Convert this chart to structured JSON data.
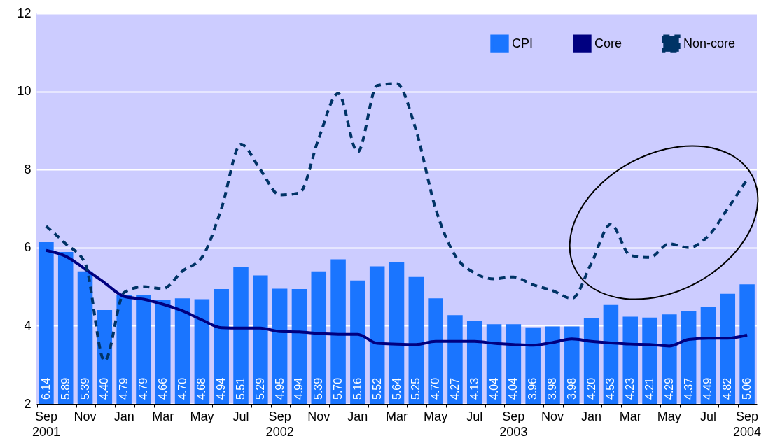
{
  "chart_data": {
    "type": "bar",
    "categories": [
      "Sep\n2001",
      null,
      "Nov",
      null,
      "Jan",
      null,
      "Mar",
      null,
      "May",
      null,
      "Jul",
      null,
      "Sep\n2002",
      null,
      "Nov",
      null,
      "Jan",
      null,
      "Mar",
      null,
      "May",
      null,
      "Jul",
      null,
      "Sep\n2003",
      null,
      "Nov",
      null,
      "Jan",
      null,
      "Mar",
      null,
      "May",
      null,
      "Jul",
      null,
      "Sep\n2004"
    ],
    "series": [
      {
        "name": "CPI",
        "color": "#1a75ff",
        "values": [
          6.14,
          5.89,
          5.39,
          4.4,
          4.79,
          4.79,
          4.66,
          4.7,
          4.68,
          4.94,
          5.51,
          5.29,
          4.95,
          4.94,
          5.39,
          5.7,
          5.16,
          5.52,
          5.64,
          5.25,
          4.7,
          4.27,
          4.13,
          4.04,
          4.04,
          3.96,
          3.98,
          3.98,
          4.2,
          4.53,
          4.23,
          4.21,
          4.29,
          4.37,
          4.49,
          4.82,
          5.06
        ]
      },
      {
        "name": "Core",
        "type": "line",
        "color": "#000080",
        "line_style": "solid",
        "values": [
          5.93,
          5.78,
          5.45,
          5.1,
          4.75,
          4.68,
          4.55,
          4.38,
          4.15,
          3.95,
          3.94,
          3.94,
          3.85,
          3.84,
          3.8,
          3.78,
          3.78,
          3.55,
          3.53,
          3.52,
          3.6,
          3.6,
          3.6,
          3.55,
          3.52,
          3.5,
          3.57,
          3.66,
          3.6,
          3.56,
          3.53,
          3.52,
          3.48,
          3.65,
          3.68,
          3.68,
          3.76
        ]
      },
      {
        "name": "Non-core",
        "type": "line",
        "color": "#003366",
        "line_style": "dashed",
        "values": [
          6.55,
          6.1,
          5.6,
          3.1,
          4.85,
          5.0,
          4.95,
          5.4,
          5.75,
          7.0,
          8.65,
          8.0,
          7.35,
          7.4,
          8.8,
          9.95,
          8.45,
          10.15,
          10.2,
          9.0,
          7.0,
          5.8,
          5.35,
          5.2,
          5.25,
          5.05,
          4.9,
          4.7,
          5.6,
          6.6,
          5.8,
          5.75,
          6.1,
          6.0,
          6.3,
          7.0,
          7.75
        ]
      }
    ],
    "value_labels": [
      "6.14",
      "5.89",
      "5.39",
      "4.40",
      "4.79",
      "4.79",
      "4.66",
      "4.70",
      "4.68",
      "4.94",
      "5.51",
      "5.29",
      "4.95",
      "4.94",
      "5.39",
      "5.70",
      "5.16",
      "5.52",
      "5.64",
      "5.25",
      "4.70",
      "4.27",
      "4.13",
      "4.04",
      "4.04",
      "3.96",
      "3.98",
      "3.98",
      "4.20",
      "4.53",
      "4.23",
      "4.21",
      "4.29",
      "4.37",
      "4.49",
      "4.82",
      "5.06"
    ],
    "ylim": [
      2,
      12
    ],
    "yticks": [
      2,
      4,
      6,
      8,
      10,
      12
    ],
    "grid": "y",
    "legend": "top right"
  }
}
